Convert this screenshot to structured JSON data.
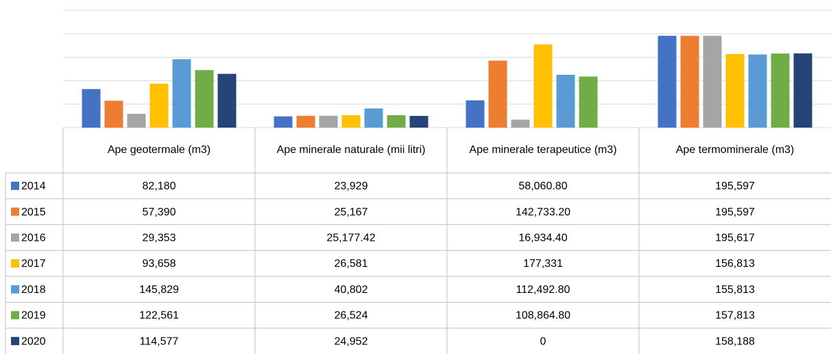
{
  "chart_data": {
    "type": "bar",
    "categories": [
      "Ape geotermale (m3)",
      "Ape minerale naturale (mii litri)",
      "Ape minerale terapeutice (m3)",
      "Ape termominerale (m3)"
    ],
    "series": [
      {
        "name": "2014",
        "color": "#4472c4",
        "values": [
          82180,
          23929,
          58060.8,
          195597
        ],
        "value_labels": [
          "82,180",
          "23,929",
          "58,060.80",
          "195,597"
        ]
      },
      {
        "name": "2015",
        "color": "#ed7d31",
        "values": [
          57390,
          25167,
          142733.2,
          195597
        ],
        "value_labels": [
          "57,390",
          "25,167",
          "142,733.20",
          "195,597"
        ]
      },
      {
        "name": "2016",
        "color": "#a5a5a5",
        "values": [
          29353,
          25177.42,
          16934.4,
          195617
        ],
        "value_labels": [
          "29,353",
          "25,177.42",
          "16,934.40",
          "195,617"
        ]
      },
      {
        "name": "2017",
        "color": "#ffc000",
        "values": [
          93658,
          26581,
          177331,
          156813
        ],
        "value_labels": [
          "93,658",
          "26,581",
          "177,331",
          "156,813"
        ]
      },
      {
        "name": "2018",
        "color": "#5b9bd5",
        "values": [
          145829,
          40802,
          112492.8,
          155813
        ],
        "value_labels": [
          "145,829",
          "40,802",
          "112,492.80",
          "155,813"
        ]
      },
      {
        "name": "2019",
        "color": "#70ad47",
        "values": [
          122561,
          26524,
          108864.8,
          157813
        ],
        "value_labels": [
          "122,561",
          "26,524",
          "108,864.80",
          "157,813"
        ]
      },
      {
        "name": "2020",
        "color": "#264478",
        "values": [
          114577,
          24952,
          0,
          158188
        ],
        "value_labels": [
          "114,577",
          "24,952",
          "0",
          "158,188"
        ]
      }
    ],
    "ylim": [
      0,
      250000
    ],
    "yticks": [
      0,
      50000,
      100000,
      150000,
      200000,
      250000
    ],
    "grid": true
  }
}
